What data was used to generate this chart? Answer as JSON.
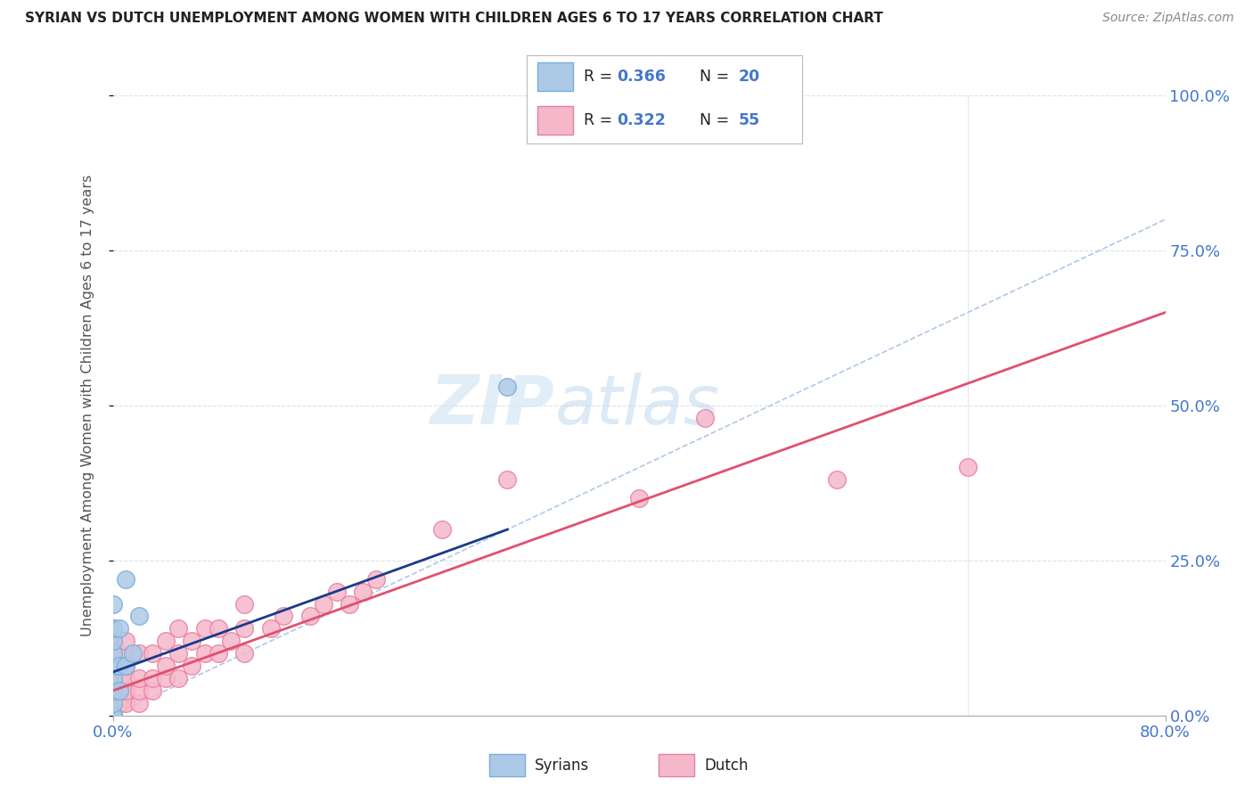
{
  "title": "SYRIAN VS DUTCH UNEMPLOYMENT AMONG WOMEN WITH CHILDREN AGES 6 TO 17 YEARS CORRELATION CHART",
  "source": "Source: ZipAtlas.com",
  "ylabel": "Unemployment Among Women with Children Ages 6 to 17 years",
  "xlim": [
    0.0,
    0.8
  ],
  "ylim": [
    0.0,
    1.0
  ],
  "xtick_labels": [
    "0.0%",
    "80.0%"
  ],
  "ytick_labels_right": [
    "100.0%",
    "75.0%",
    "50.0%",
    "25.0%",
    "0.0%"
  ],
  "ytick_vals_right": [
    1.0,
    0.75,
    0.5,
    0.25,
    0.0
  ],
  "watermark_zip": "ZIP",
  "watermark_atlas": "atlas",
  "syrian_color": "#adc9e8",
  "dutch_color": "#f5b8cb",
  "syrian_edge": "#7aaed6",
  "dutch_edge": "#e87fa0",
  "trendline_syrian_color": "#1a3a8a",
  "trendline_dutch_color": "#e05070",
  "diag_color": "#b0c8e8",
  "background_color": "#ffffff",
  "grid_color": "#e0e0e0",
  "title_color": "#222222",
  "axis_label_color": "#555555",
  "tick_color_blue": "#4477cc",
  "syrian_x": [
    0.0,
    0.0,
    0.0,
    0.0,
    0.0,
    0.0,
    0.0,
    0.0,
    0.0,
    0.0,
    0.0,
    0.0,
    0.005,
    0.005,
    0.005,
    0.01,
    0.01,
    0.015,
    0.02,
    0.3
  ],
  "syrian_y": [
    0.0,
    0.0,
    0.0,
    0.0,
    0.02,
    0.04,
    0.06,
    0.08,
    0.1,
    0.12,
    0.14,
    0.18,
    0.04,
    0.08,
    0.14,
    0.08,
    0.22,
    0.1,
    0.16,
    0.53
  ],
  "dutch_x": [
    0.0,
    0.0,
    0.0,
    0.0,
    0.0,
    0.0,
    0.0,
    0.0,
    0.0,
    0.0,
    0.005,
    0.005,
    0.005,
    0.01,
    0.01,
    0.01,
    0.01,
    0.01,
    0.02,
    0.02,
    0.02,
    0.02,
    0.03,
    0.03,
    0.03,
    0.04,
    0.04,
    0.04,
    0.05,
    0.05,
    0.05,
    0.06,
    0.06,
    0.07,
    0.07,
    0.08,
    0.08,
    0.09,
    0.1,
    0.1,
    0.1,
    0.12,
    0.13,
    0.15,
    0.16,
    0.17,
    0.18,
    0.19,
    0.2,
    0.25,
    0.3,
    0.4,
    0.45,
    0.55,
    0.65
  ],
  "dutch_y": [
    0.0,
    0.0,
    0.0,
    0.02,
    0.04,
    0.06,
    0.08,
    0.1,
    0.12,
    0.14,
    0.02,
    0.06,
    0.1,
    0.02,
    0.04,
    0.06,
    0.08,
    0.12,
    0.02,
    0.04,
    0.06,
    0.1,
    0.04,
    0.06,
    0.1,
    0.06,
    0.08,
    0.12,
    0.06,
    0.1,
    0.14,
    0.08,
    0.12,
    0.1,
    0.14,
    0.1,
    0.14,
    0.12,
    0.1,
    0.14,
    0.18,
    0.14,
    0.16,
    0.16,
    0.18,
    0.2,
    0.18,
    0.2,
    0.22,
    0.3,
    0.38,
    0.35,
    0.48,
    0.38,
    0.4
  ],
  "trendline_dutch_x0": 0.0,
  "trendline_dutch_x1": 0.8,
  "trendline_dutch_y0": 0.04,
  "trendline_dutch_y1": 0.65,
  "trendline_syrian_x0": 0.0,
  "trendline_syrian_x1": 0.3,
  "trendline_syrian_y0": 0.07,
  "trendline_syrian_y1": 0.3
}
